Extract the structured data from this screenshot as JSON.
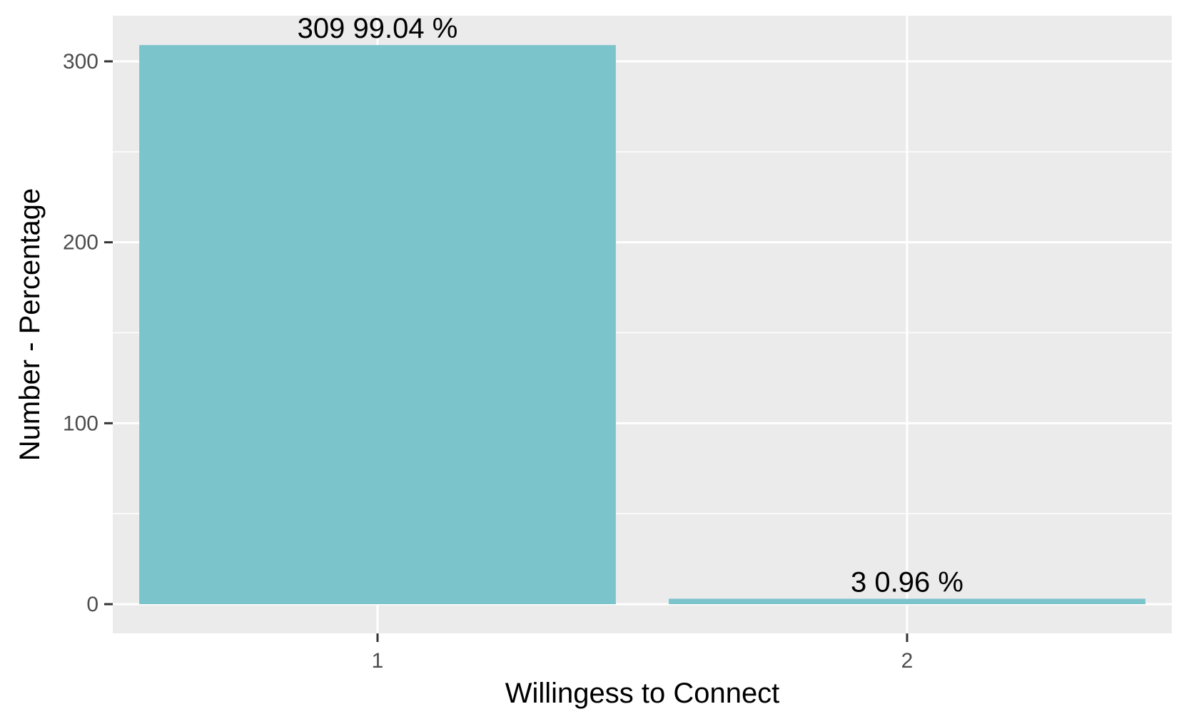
{
  "chart_data": {
    "type": "bar",
    "title": "",
    "xlabel": "Willingess to Connect",
    "ylabel": "Number - Percentage",
    "categories": [
      "1",
      "2"
    ],
    "values": [
      309,
      3
    ],
    "data_labels": [
      {
        "count": "309",
        "percent": "99.04 %"
      },
      {
        "count": "3",
        "percent": "0.96 %"
      }
    ],
    "ylim": [
      0,
      322
    ],
    "y_major_ticks": [
      0,
      100,
      200,
      300
    ],
    "y_tick_labels": [
      "0",
      "100",
      "200",
      "300"
    ],
    "y_minor_ticks": [
      50,
      150,
      250
    ],
    "grid": true,
    "legend": "none",
    "colors": {
      "bar": "#7bc4cc",
      "panel": "#ebebeb",
      "grid": "#ffffff",
      "tick": "#333333",
      "tick_label": "#4d4d4d"
    }
  }
}
